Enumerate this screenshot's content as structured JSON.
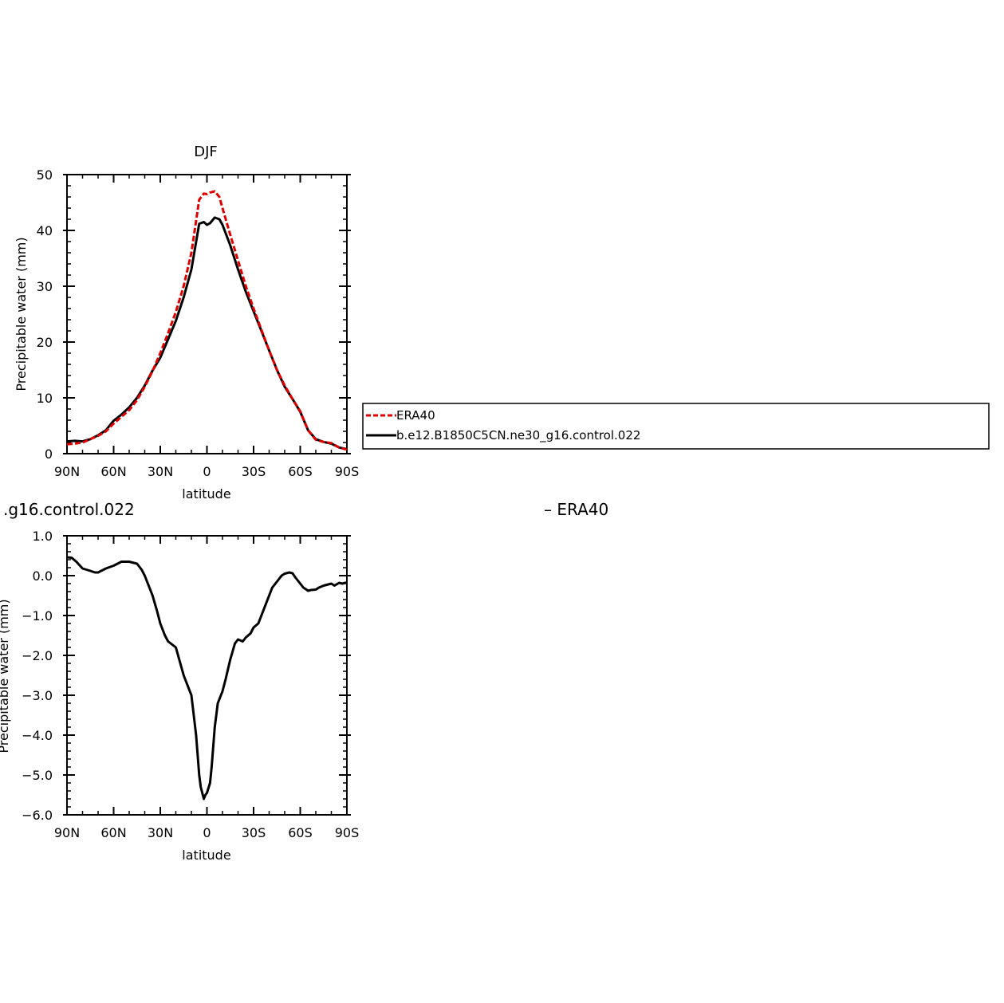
{
  "chart_data": [
    {
      "type": "line",
      "title": "DJF",
      "xlabel": "latitude",
      "ylabel": "Precipitable water (mm)",
      "xlim": [
        90,
        -90
      ],
      "ylim": [
        0,
        50
      ],
      "xticks": [
        {
          "value": 90,
          "label": "90N"
        },
        {
          "value": 60,
          "label": "60N"
        },
        {
          "value": 30,
          "label": "30N"
        },
        {
          "value": 0,
          "label": "0"
        },
        {
          "value": -30,
          "label": "30S"
        },
        {
          "value": -60,
          "label": "60S"
        },
        {
          "value": -90,
          "label": "90S"
        }
      ],
      "yticks": [
        {
          "value": 0,
          "label": "0"
        },
        {
          "value": 10,
          "label": "10"
        },
        {
          "value": 20,
          "label": "20"
        },
        {
          "value": 30,
          "label": "30"
        },
        {
          "value": 40,
          "label": "40"
        },
        {
          "value": 50,
          "label": "50"
        }
      ],
      "legend": {
        "placement": "right",
        "entries": [
          {
            "label": "ERA40",
            "color": "#e00000",
            "dash": true
          },
          {
            "label": "b.e12.B1850C5CN.ne30_g16.control.022",
            "color": "#000000",
            "dash": false
          }
        ]
      },
      "series": [
        {
          "name": "ERA40",
          "color": "#e00000",
          "dash": true,
          "x": [
            90,
            85,
            80,
            75,
            70,
            65,
            60,
            55,
            50,
            45,
            40,
            35,
            30,
            25,
            20,
            15,
            10,
            5,
            2,
            0,
            -2,
            -5,
            -8,
            -10,
            -15,
            -20,
            -25,
            -30,
            -35,
            -40,
            -45,
            -50,
            -55,
            -60,
            -65,
            -70,
            -75,
            -80,
            -85,
            -90
          ],
          "y": [
            1.7,
            1.8,
            2.0,
            2.6,
            3.2,
            4.0,
            5.4,
            6.6,
            7.8,
            9.6,
            12.0,
            14.8,
            18.0,
            21.6,
            25.4,
            30.0,
            36.0,
            45.5,
            46.6,
            46.5,
            46.8,
            47.0,
            46.0,
            44.0,
            39.2,
            34.6,
            30.0,
            26.0,
            22.2,
            18.5,
            15.0,
            12.2,
            9.8,
            7.6,
            4.2,
            2.5,
            2.1,
            1.9,
            1.1,
            0.7
          ]
        },
        {
          "name": "b.e12.B1850C5CN.ne30_g16.control.022",
          "color": "#000000",
          "dash": false,
          "x": [
            90,
            85,
            80,
            75,
            70,
            65,
            60,
            55,
            50,
            45,
            40,
            35,
            30,
            25,
            20,
            15,
            10,
            5,
            2,
            0,
            -2,
            -5,
            -8,
            -10,
            -15,
            -20,
            -25,
            -30,
            -35,
            -40,
            -45,
            -50,
            -55,
            -60,
            -65,
            -70,
            -75,
            -80,
            -85,
            -90
          ],
          "y": [
            2.2,
            2.3,
            2.2,
            2.6,
            3.3,
            4.2,
            5.9,
            7.0,
            8.3,
            10.0,
            12.2,
            14.9,
            17.2,
            20.5,
            23.8,
            28.0,
            33.0,
            41.2,
            41.5,
            41.0,
            41.3,
            42.3,
            42.0,
            41.0,
            37.3,
            33.0,
            29.0,
            25.5,
            22.0,
            18.5,
            15.0,
            12.0,
            9.8,
            7.5,
            4.2,
            2.6,
            2.1,
            1.8,
            1.1,
            0.8
          ]
        }
      ]
    },
    {
      "type": "line",
      "title": ".g16.control.022",
      "title_right": "– ERA40",
      "xlabel": "latitude",
      "ylabel": "Precipitable water (mm)",
      "xlim": [
        90,
        -90
      ],
      "ylim": [
        -6,
        1
      ],
      "xticks": [
        {
          "value": 90,
          "label": "90N"
        },
        {
          "value": 60,
          "label": "60N"
        },
        {
          "value": 30,
          "label": "30N"
        },
        {
          "value": 0,
          "label": "0"
        },
        {
          "value": -30,
          "label": "30S"
        },
        {
          "value": -60,
          "label": "60S"
        },
        {
          "value": -90,
          "label": "90S"
        }
      ],
      "yticks": [
        {
          "value": 1,
          "label": "1.0"
        },
        {
          "value": 0,
          "label": "0.0"
        },
        {
          "value": -1,
          "label": "−1.0"
        },
        {
          "value": -2,
          "label": "−2.0"
        },
        {
          "value": -3,
          "label": "−3.0"
        },
        {
          "value": -4,
          "label": "−4.0"
        },
        {
          "value": -5,
          "label": "−5.0"
        },
        {
          "value": -6,
          "label": "−6.0"
        }
      ],
      "series": [
        {
          "color": "#000000",
          "dash": false,
          "x": [
            90,
            87,
            84,
            80,
            75,
            72,
            70,
            65,
            60,
            55,
            52,
            50,
            45,
            42,
            40,
            35,
            32,
            30,
            27,
            25,
            20,
            15,
            12,
            10,
            7,
            5,
            4,
            2,
            1,
            0,
            -2,
            -3,
            -5,
            -7,
            -10,
            -12,
            -15,
            -18,
            -20,
            -23,
            -25,
            -28,
            -30,
            -33,
            -35,
            -38,
            -40,
            -42,
            -45,
            -48,
            -50,
            -53,
            -55,
            -57,
            -60,
            -62,
            -64,
            -65,
            -67,
            -70,
            -72,
            -75,
            -78,
            -80,
            -82,
            -85,
            -87,
            -90
          ],
          "y": [
            0.46,
            0.45,
            0.35,
            0.18,
            0.12,
            0.08,
            0.08,
            0.18,
            0.25,
            0.35,
            0.35,
            0.35,
            0.3,
            0.15,
            0.0,
            -0.5,
            -0.9,
            -1.2,
            -1.5,
            -1.65,
            -1.8,
            -2.5,
            -2.8,
            -3.0,
            -4.0,
            -5.0,
            -5.3,
            -5.6,
            -5.5,
            -5.45,
            -5.2,
            -4.8,
            -3.8,
            -3.2,
            -2.9,
            -2.6,
            -2.1,
            -1.7,
            -1.6,
            -1.65,
            -1.55,
            -1.45,
            -1.3,
            -1.2,
            -1.0,
            -0.7,
            -0.5,
            -0.3,
            -0.15,
            0.0,
            0.05,
            0.08,
            0.06,
            -0.05,
            -0.2,
            -0.3,
            -0.35,
            -0.38,
            -0.36,
            -0.35,
            -0.3,
            -0.25,
            -0.22,
            -0.2,
            -0.25,
            -0.18,
            -0.2,
            -0.17
          ]
        }
      ]
    }
  ]
}
